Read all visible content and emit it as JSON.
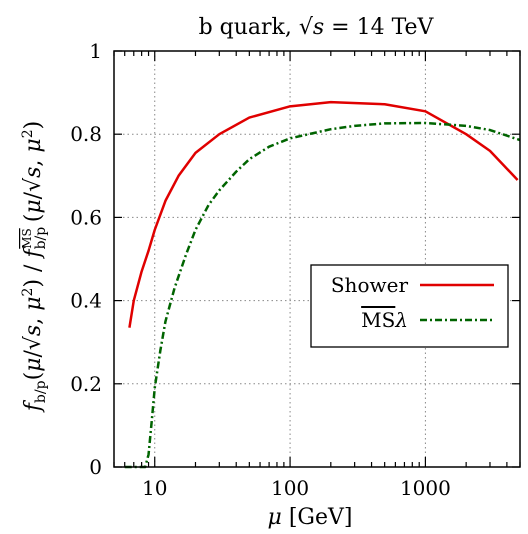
{
  "chart_data": {
    "type": "line",
    "title": "b quark, √s = 14 TeV",
    "xlabel": "μ [GeV]",
    "ylabel": "f_b/p(μ/√s, μ²) / f^MS_b/p(μ/√s, μ²)",
    "xscale": "log",
    "xlim": [
      5.0,
      5000
    ],
    "ylim": [
      0,
      1
    ],
    "xticks": [
      10,
      100,
      1000
    ],
    "xtick_labels": [
      "10",
      "100",
      "1000"
    ],
    "yticks": [
      0,
      0.2,
      0.4,
      0.6,
      0.8,
      1
    ],
    "ytick_labels": [
      "0",
      "0.2",
      "0.4",
      "0.6",
      "0.8",
      "1"
    ],
    "grid": true,
    "legend_position": "center-right",
    "series": [
      {
        "name": "Shower",
        "color": "#e00000",
        "style": "solid",
        "x": [
          6.5,
          7,
          8,
          9,
          10,
          12,
          15,
          20,
          30,
          50,
          100,
          200,
          500,
          1000,
          2000,
          3000,
          4800
        ],
        "y": [
          0.335,
          0.4,
          0.47,
          0.52,
          0.57,
          0.64,
          0.7,
          0.755,
          0.8,
          0.84,
          0.867,
          0.877,
          0.872,
          0.855,
          0.8,
          0.76,
          0.69
        ]
      },
      {
        "name": "MSλ",
        "color": "#006400",
        "style": "dash-dot",
        "x": [
          6.0,
          8.5,
          9,
          9.5,
          10,
          11,
          12,
          14,
          17,
          20,
          25,
          30,
          40,
          50,
          70,
          100,
          200,
          300,
          500,
          1000,
          2000,
          3000,
          5000
        ],
        "y": [
          0.0,
          0.0,
          0.03,
          0.11,
          0.19,
          0.28,
          0.35,
          0.43,
          0.51,
          0.57,
          0.63,
          0.665,
          0.71,
          0.74,
          0.77,
          0.79,
          0.812,
          0.82,
          0.826,
          0.827,
          0.82,
          0.81,
          0.786
        ]
      }
    ]
  }
}
